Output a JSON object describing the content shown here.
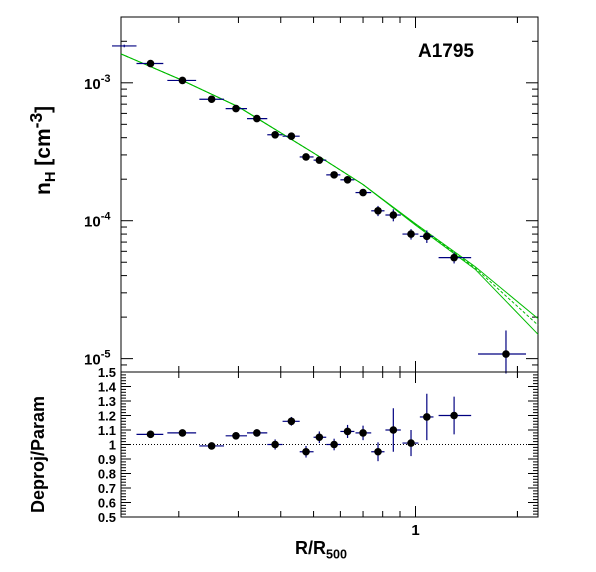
{
  "title": "A1795",
  "axes": {
    "top_ylabel_main": "n",
    "top_ylabel_sub": "H",
    "top_ylabel_rest": " [cm",
    "top_ylabel_sup": "-3",
    "top_ylabel_end": "]",
    "bottom_ylabel": "Deproj/Param",
    "xlabel_main": "R/R",
    "xlabel_sub": "500"
  },
  "colors": {
    "points": "#000000",
    "errorbars": "#000080",
    "fit": "#00bb00",
    "reference": "#000000"
  },
  "chart_data": [
    {
      "type": "scatter",
      "panel": "top",
      "title": "A1795",
      "xlabel": "R/R500",
      "ylabel": "n_H [cm^-3]",
      "xscale": "log",
      "yscale": "log",
      "xlim": [
        0.135,
        2.3
      ],
      "ylim": [
        8e-06,
        0.003
      ],
      "xticklabels": [
        "1"
      ],
      "yticklabels": [
        "10^-3",
        "10^-4",
        "10^-5"
      ],
      "grid": false,
      "series": [
        {
          "kind": "data-with-errors",
          "points": [
            {
              "x": 0.138,
              "y": 0.00185,
              "xerr": [
                0.127,
                0.15
              ],
              "yerr": 4e-05,
              "marker": false
            },
            {
              "x": 0.165,
              "y": 0.00138,
              "xerr": [
                0.15,
                0.18
              ],
              "yerr": 4e-05
            },
            {
              "x": 0.205,
              "y": 0.00104,
              "xerr": [
                0.185,
                0.225
              ],
              "yerr": 3e-05
            },
            {
              "x": 0.25,
              "y": 0.00076,
              "xerr": [
                0.23,
                0.272
              ],
              "yerr": 2e-05
            },
            {
              "x": 0.295,
              "y": 0.00065,
              "xerr": [
                0.275,
                0.318
              ],
              "yerr": 2e-05
            },
            {
              "x": 0.34,
              "y": 0.00055,
              "xerr": [
                0.318,
                0.365
              ],
              "yerr": 1.5e-05
            },
            {
              "x": 0.385,
              "y": 0.00042,
              "xerr": [
                0.365,
                0.405
              ],
              "yerr": 1.2e-05
            },
            {
              "x": 0.43,
              "y": 0.00041,
              "xerr": [
                0.405,
                0.455
              ],
              "yerr": 1.5e-05
            },
            {
              "x": 0.475,
              "y": 0.00029,
              "xerr": [
                0.455,
                0.5
              ],
              "yerr": 1e-05
            },
            {
              "x": 0.52,
              "y": 0.000275,
              "xerr": [
                0.5,
                0.545
              ],
              "yerr": 1e-05
            },
            {
              "x": 0.575,
              "y": 0.000215,
              "xerr": [
                0.545,
                0.6
              ],
              "yerr": 8e-06
            },
            {
              "x": 0.63,
              "y": 0.000198,
              "xerr": [
                0.6,
                0.66
              ],
              "yerr": 8e-06
            },
            {
              "x": 0.7,
              "y": 0.00016,
              "xerr": [
                0.665,
                0.74
              ],
              "yerr": 8e-06
            },
            {
              "x": 0.775,
              "y": 0.000118,
              "xerr": [
                0.74,
                0.81
              ],
              "yerr": 1e-05
            },
            {
              "x": 0.86,
              "y": 0.00011,
              "xerr": [
                0.815,
                0.905
              ],
              "yerr": 1.1e-05
            },
            {
              "x": 0.97,
              "y": 8e-05,
              "xerr": [
                0.915,
                1.02
              ],
              "yerr": 7e-06
            },
            {
              "x": 1.08,
              "y": 7.7e-05,
              "xerr": [
                1.03,
                1.13
              ],
              "yerr": 8e-06
            },
            {
              "x": 1.3,
              "y": 5.4e-05,
              "xerr": [
                1.17,
                1.46
              ],
              "yerr": 5e-06
            },
            {
              "x": 1.85,
              "y": 1.08e-05,
              "xerr": [
                1.53,
                2.12
              ],
              "yerr": [
                7.8e-06,
                1.6e-05
              ]
            }
          ]
        },
        {
          "kind": "model-band",
          "style": "dashed",
          "x": [
            0.135,
            0.2,
            0.3,
            0.5,
            0.7,
            1.0,
            1.5,
            2.3
          ],
          "y": [
            0.00162,
            0.00107,
            0.00067,
            0.00031,
            0.000183,
            9.4e-05,
            4.55e-05,
            1.75e-05
          ],
          "y_lower": [
            0.00162,
            0.00107,
            0.00067,
            0.00031,
            0.000183,
            9.3e-05,
            4.45e-05,
            1.5e-05
          ],
          "y_upper": [
            0.00162,
            0.00107,
            0.00067,
            0.00031,
            0.000183,
            9.5e-05,
            4.65e-05,
            1.95e-05
          ]
        }
      ]
    },
    {
      "type": "scatter",
      "panel": "bottom",
      "xlabel": "R/R500",
      "ylabel": "Deproj/Param",
      "xscale": "log",
      "yscale": "linear",
      "xlim": [
        0.135,
        2.3
      ],
      "ylim": [
        0.5,
        1.5
      ],
      "xticklabels": [
        "1"
      ],
      "yticklabels": [
        "0.5",
        "0.6",
        "0.7",
        "0.8",
        "0.9",
        "1",
        "1.1",
        "1.2",
        "1.3",
        "1.4",
        "1.5"
      ],
      "reference_line": 1.0,
      "grid": false,
      "series": [
        {
          "kind": "data-with-errors",
          "points": [
            {
              "x": 0.165,
              "y": 1.07,
              "xerr": [
                0.15,
                0.18
              ],
              "yerr": 0.01
            },
            {
              "x": 0.205,
              "y": 1.08,
              "xerr": [
                0.185,
                0.225
              ],
              "yerr": 0.01
            },
            {
              "x": 0.25,
              "y": 0.99,
              "xerr": [
                0.23,
                0.272
              ],
              "yerr": 0.015
            },
            {
              "x": 0.295,
              "y": 1.06,
              "xerr": [
                0.275,
                0.318
              ],
              "yerr": 0.02
            },
            {
              "x": 0.34,
              "y": 1.08,
              "xerr": [
                0.318,
                0.365
              ],
              "yerr": 0.025
            },
            {
              "x": 0.385,
              "y": 1.0,
              "xerr": [
                0.365,
                0.405
              ],
              "yerr": 0.035
            },
            {
              "x": 0.43,
              "y": 1.16,
              "xerr": [
                0.405,
                0.455
              ],
              "yerr": 0.03
            },
            {
              "x": 0.475,
              "y": 0.95,
              "xerr": [
                0.455,
                0.5
              ],
              "yerr": 0.04
            },
            {
              "x": 0.52,
              "y": 1.05,
              "xerr": [
                0.5,
                0.545
              ],
              "yerr": 0.04
            },
            {
              "x": 0.575,
              "y": 1.0,
              "xerr": [
                0.545,
                0.6
              ],
              "yerr": 0.04
            },
            {
              "x": 0.63,
              "y": 1.09,
              "xerr": [
                0.6,
                0.66
              ],
              "yerr": 0.045
            },
            {
              "x": 0.7,
              "y": 1.08,
              "xerr": [
                0.665,
                0.74
              ],
              "yerr": 0.05
            },
            {
              "x": 0.775,
              "y": 0.95,
              "xerr": [
                0.74,
                0.81
              ],
              "yerr": 0.065
            },
            {
              "x": 0.86,
              "y": 1.1,
              "xerr": [
                0.815,
                0.905
              ],
              "yerr": 0.15
            },
            {
              "x": 0.97,
              "y": 1.01,
              "xerr": [
                0.915,
                1.02
              ],
              "yerr": 0.09
            },
            {
              "x": 1.08,
              "y": 1.19,
              "xerr": [
                1.03,
                1.13
              ],
              "yerr": 0.16
            },
            {
              "x": 1.3,
              "y": 1.2,
              "xerr": [
                1.17,
                1.46
              ],
              "yerr": 0.13
            }
          ]
        }
      ]
    }
  ]
}
